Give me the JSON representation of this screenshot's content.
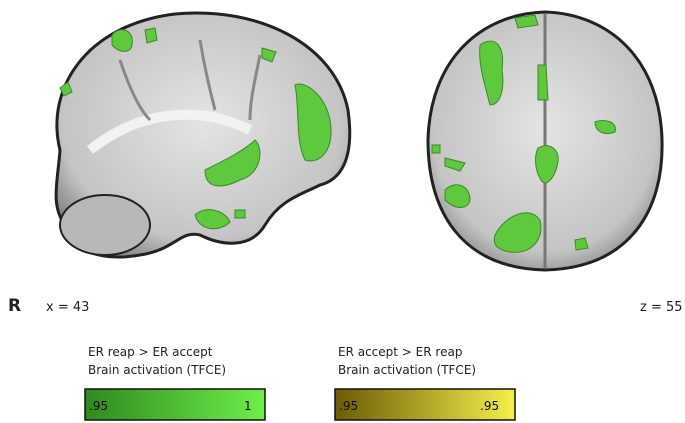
{
  "orientation_label": "R",
  "left_slice": {
    "label": "x = 43"
  },
  "right_slice": {
    "label": "z = 55"
  },
  "legends": [
    {
      "title": "ER reap > ER accept",
      "subtitle": "Brain activation (TFCE)",
      "min_label": ".95",
      "max_label": "1"
    },
    {
      "title": "ER accept > ER reap",
      "subtitle": "Brain activation (TFCE)",
      "min_label": ".95",
      "max_label": ".95"
    }
  ]
}
